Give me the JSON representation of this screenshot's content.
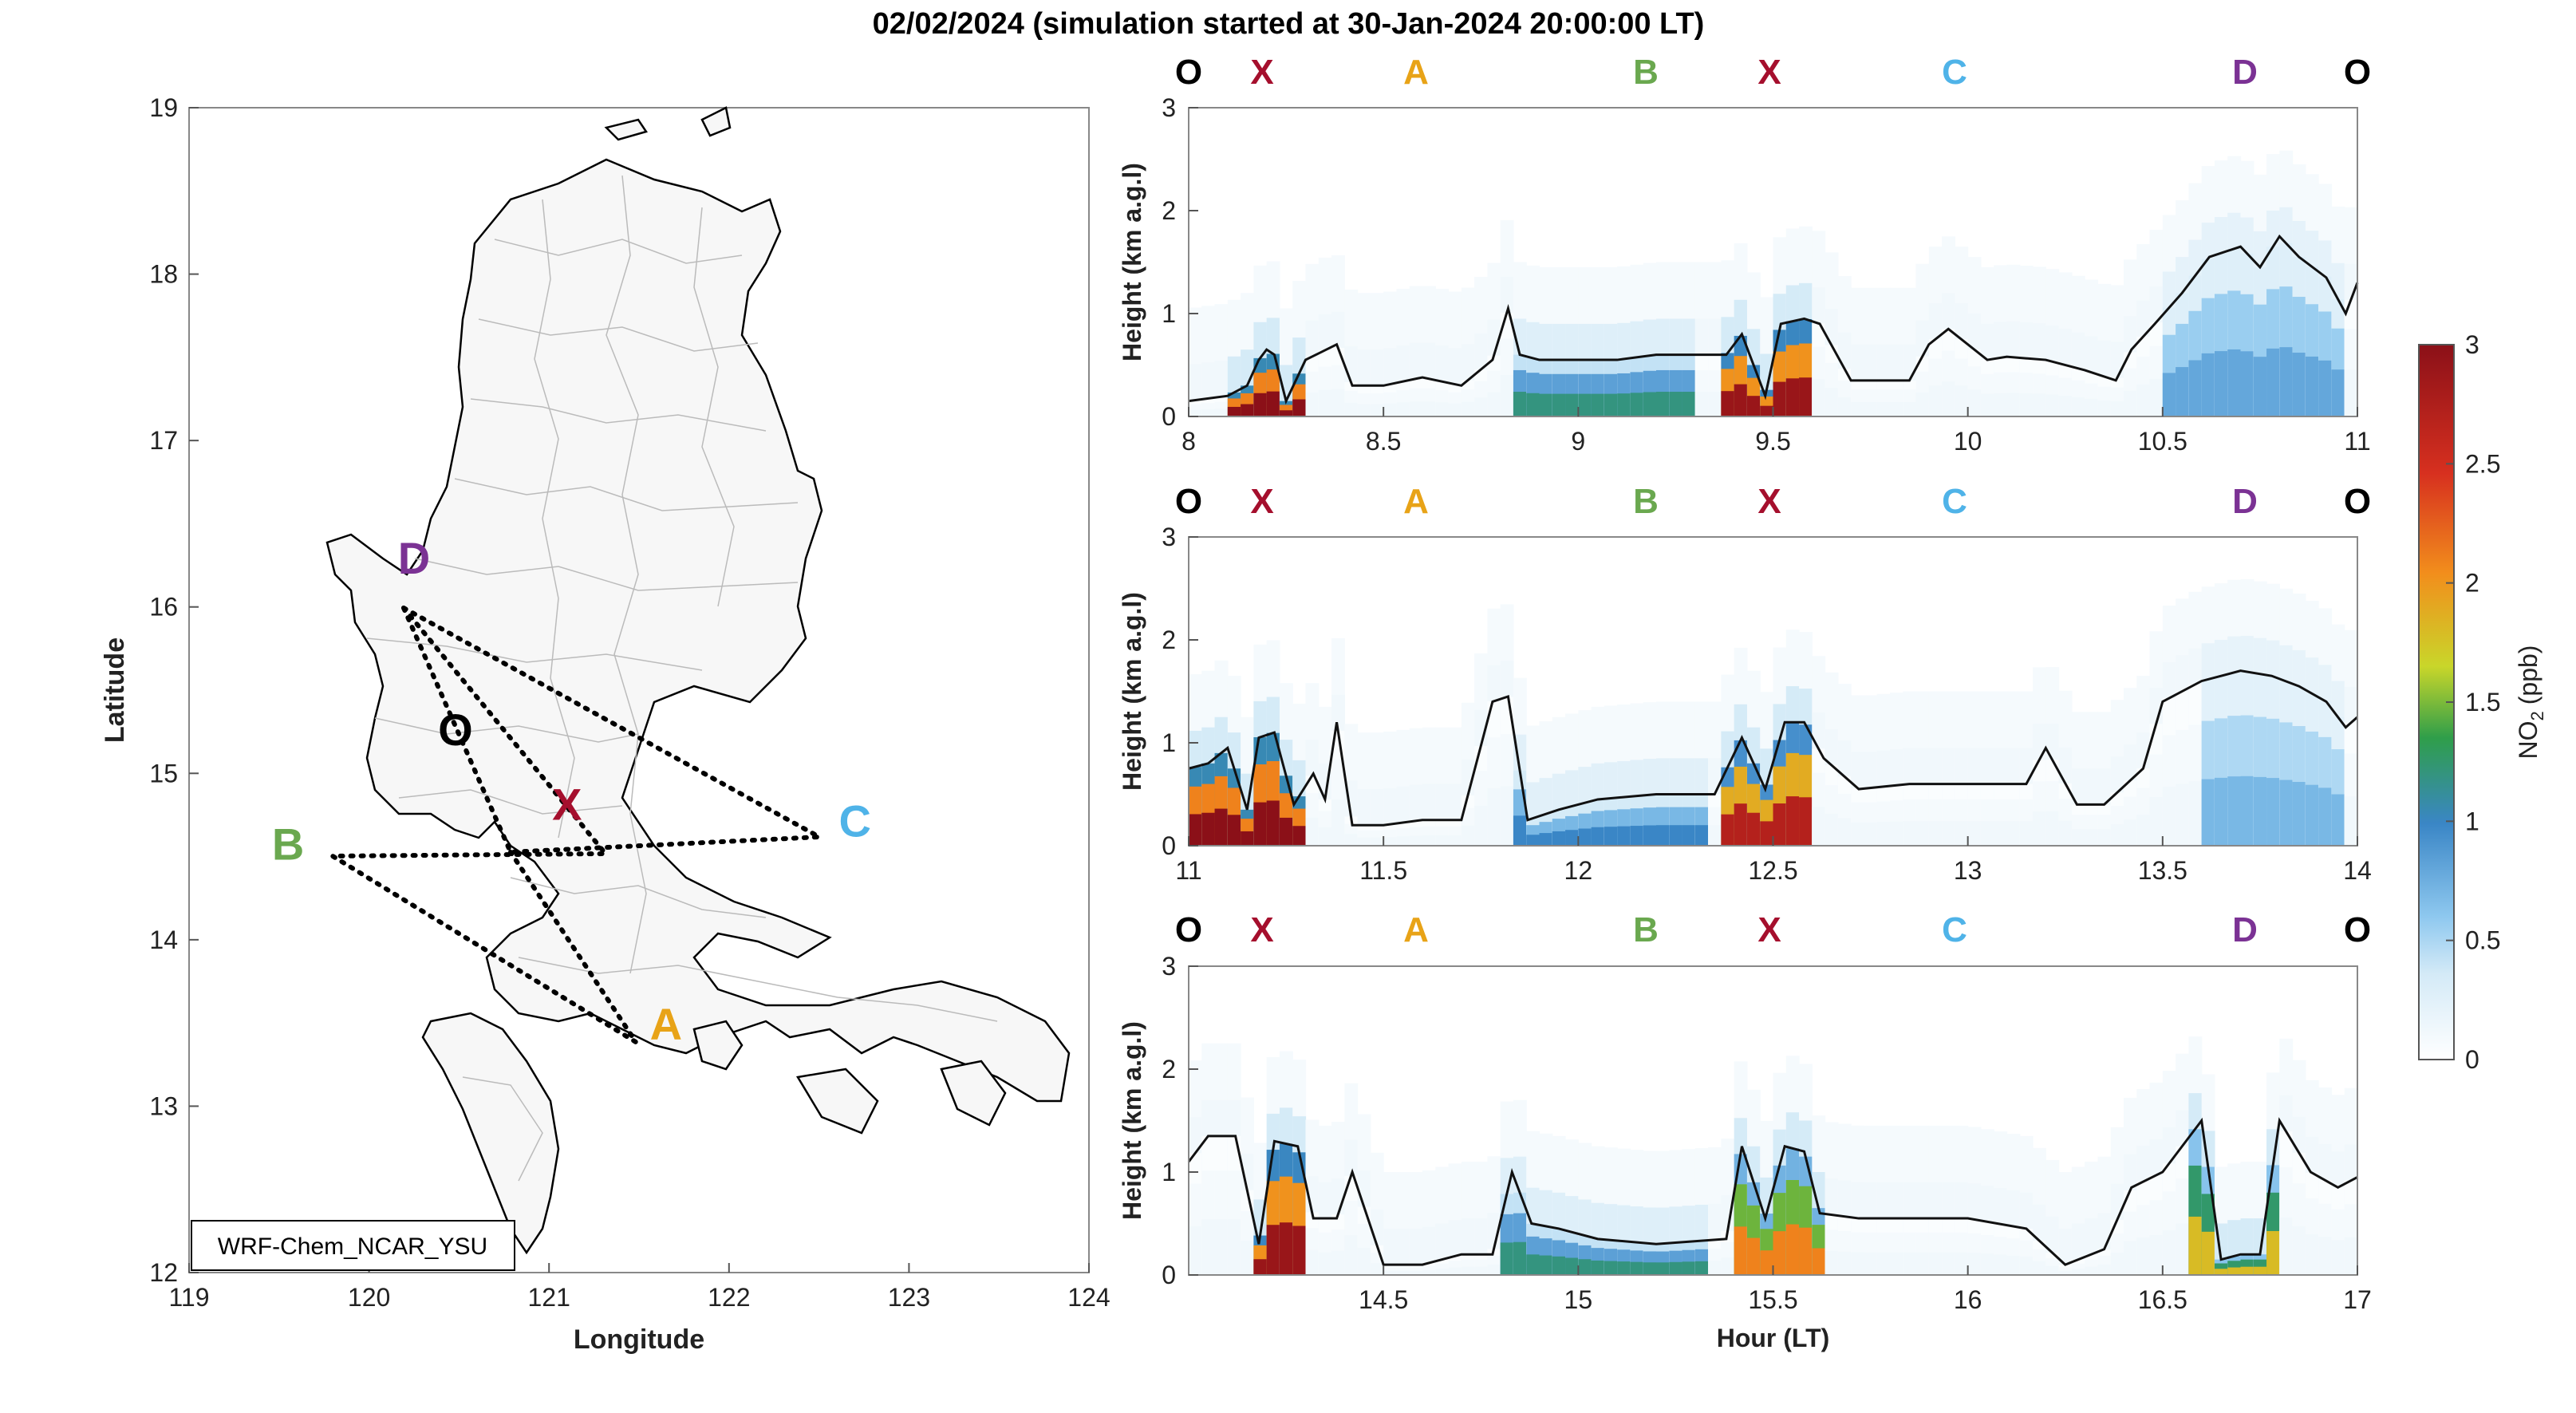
{
  "figure": {
    "title": "02/02/2024 (simulation started at 30-Jan-2024 20:00:00 LT)"
  },
  "map": {
    "xlabel": "Longitude",
    "ylabel": "Latitude",
    "model_label": "WRF-Chem_NCAR_YSU",
    "xticks": [
      119,
      120,
      121,
      122,
      123,
      124
    ],
    "yticks": [
      12,
      13,
      14,
      15,
      16,
      17,
      18,
      19
    ],
    "xlim": [
      119,
      124
    ],
    "ylim": [
      12,
      19
    ],
    "sites": [
      {
        "name": "D",
        "lon": 120.25,
        "lat": 16.2,
        "color": "#7b3294"
      },
      {
        "name": "O",
        "lon": 120.48,
        "lat": 15.17,
        "color": "#000000"
      },
      {
        "name": "X",
        "lon": 121.1,
        "lat": 14.72,
        "color": "#a50f2d"
      },
      {
        "name": "B",
        "lon": 119.55,
        "lat": 14.48,
        "color": "#6aa84f"
      },
      {
        "name": "C",
        "lon": 122.7,
        "lat": 14.62,
        "color": "#4fb3e8"
      },
      {
        "name": "A",
        "lon": 121.65,
        "lat": 13.4,
        "color": "#e8a317"
      }
    ],
    "route_points": {
      "D": [
        120.3,
        16.03
      ],
      "O": [
        120.55,
        15.1
      ],
      "X": [
        121.02,
        14.58
      ],
      "B": [
        119.78,
        14.52
      ],
      "C": [
        122.55,
        14.62
      ],
      "A": [
        121.58,
        13.44
      ]
    }
  },
  "site_label_sequence": [
    {
      "name": "O",
      "color": "#000000"
    },
    {
      "name": "X",
      "color": "#a50f2d"
    },
    {
      "name": "A",
      "color": "#e8a317"
    },
    {
      "name": "B",
      "color": "#6aa84f"
    },
    {
      "name": "X",
      "color": "#a50f2d"
    },
    {
      "name": "C",
      "color": "#4fb3e8"
    },
    {
      "name": "D",
      "color": "#7b3294"
    },
    {
      "name": "O",
      "color": "#000000"
    }
  ],
  "colorbar": {
    "label": "NO",
    "label_sub": "2",
    "label_unit": "(ppb)",
    "ticks": [
      0,
      0.5,
      1,
      1.5,
      2,
      2.5,
      3
    ],
    "range": [
      0,
      3
    ],
    "colors": [
      "#ffffff",
      "#d4eaf7",
      "#8ec8ef",
      "#3a86c6",
      "#2f9e4a",
      "#c9d62a",
      "#f28e1c",
      "#d7301f",
      "#8b1018"
    ]
  },
  "chart_data": [
    {
      "type": "heatmap",
      "title": "",
      "ylabel": "Height (km a.g.l)",
      "xlabel": "",
      "xlim": [
        8,
        11
      ],
      "ylim": [
        0,
        3
      ],
      "xticks": [
        8,
        8.5,
        9,
        9.5,
        10,
        10.5,
        11
      ],
      "yticks": [
        0,
        1,
        2,
        3
      ],
      "pblh": {
        "x": [
          8.0,
          8.1,
          8.15,
          8.18,
          8.2,
          8.22,
          8.25,
          8.3,
          8.38,
          8.42,
          8.5,
          8.6,
          8.7,
          8.78,
          8.82,
          8.85,
          8.9,
          9.0,
          9.1,
          9.2,
          9.3,
          9.38,
          9.42,
          9.48,
          9.52,
          9.58,
          9.62,
          9.7,
          9.85,
          9.9,
          9.95,
          10.05,
          10.1,
          10.2,
          10.3,
          10.38,
          10.42,
          10.48,
          10.55,
          10.62,
          10.7,
          10.75,
          10.8,
          10.85,
          10.92,
          10.97,
          11.0
        ],
        "y": [
          0.15,
          0.2,
          0.3,
          0.55,
          0.65,
          0.6,
          0.15,
          0.55,
          0.7,
          0.3,
          0.3,
          0.38,
          0.3,
          0.55,
          1.05,
          0.6,
          0.55,
          0.55,
          0.55,
          0.6,
          0.6,
          0.6,
          0.8,
          0.2,
          0.9,
          0.95,
          0.9,
          0.35,
          0.35,
          0.7,
          0.85,
          0.55,
          0.58,
          0.55,
          0.45,
          0.35,
          0.65,
          0.9,
          1.2,
          1.55,
          1.65,
          1.45,
          1.75,
          1.55,
          1.35,
          1.0,
          1.3
        ]
      },
      "plumes": [
        {
          "x0": 8.1,
          "x1": 8.3,
          "peak": 3.0
        },
        {
          "x0": 8.82,
          "x1": 9.3,
          "peak": 1.2
        },
        {
          "x0": 9.38,
          "x1": 9.6,
          "peak": 2.9
        },
        {
          "x0": 10.5,
          "x1": 10.97,
          "peak": 0.8
        }
      ]
    },
    {
      "type": "heatmap",
      "title": "",
      "ylabel": "Height (km a.g.l)",
      "xlabel": "",
      "xlim": [
        11,
        14
      ],
      "ylim": [
        0,
        3
      ],
      "xticks": [
        11,
        11.5,
        12,
        12.5,
        13,
        13.5,
        14
      ],
      "yticks": [
        0,
        1,
        2,
        3
      ],
      "pblh": {
        "x": [
          11.0,
          11.05,
          11.1,
          11.15,
          11.18,
          11.22,
          11.27,
          11.32,
          11.35,
          11.38,
          11.42,
          11.5,
          11.6,
          11.7,
          11.78,
          11.82,
          11.87,
          11.95,
          12.05,
          12.2,
          12.35,
          12.42,
          12.48,
          12.53,
          12.58,
          12.63,
          12.72,
          12.85,
          13.0,
          13.15,
          13.2,
          13.28,
          13.35,
          13.45,
          13.5,
          13.6,
          13.7,
          13.78,
          13.85,
          13.92,
          13.97,
          14.0
        ],
        "y": [
          0.75,
          0.8,
          0.95,
          0.35,
          1.05,
          1.1,
          0.4,
          0.7,
          0.45,
          1.2,
          0.2,
          0.2,
          0.25,
          0.25,
          1.4,
          1.45,
          0.25,
          0.35,
          0.45,
          0.5,
          0.5,
          1.05,
          0.55,
          1.2,
          1.2,
          0.85,
          0.55,
          0.6,
          0.6,
          0.6,
          0.95,
          0.4,
          0.4,
          0.75,
          1.4,
          1.6,
          1.7,
          1.65,
          1.55,
          1.4,
          1.15,
          1.25
        ]
      },
      "plumes": [
        {
          "x0": 11.0,
          "x1": 11.3,
          "peak": 3.0
        },
        {
          "x0": 11.85,
          "x1": 12.35,
          "peak": 1.0
        },
        {
          "x0": 12.38,
          "x1": 12.6,
          "peak": 2.7
        },
        {
          "x0": 13.6,
          "x1": 13.95,
          "peak": 0.7
        }
      ]
    },
    {
      "type": "heatmap",
      "title": "",
      "ylabel": "Height (km a.g.l)",
      "xlabel": "Hour (LT)",
      "xlim": [
        14,
        17
      ],
      "ylim": [
        0,
        3
      ],
      "xticks": [
        14.5,
        15,
        15.5,
        16,
        16.5,
        17
      ],
      "yticks": [
        0,
        1,
        2,
        3
      ],
      "pblh": {
        "x": [
          14.0,
          14.05,
          14.12,
          14.18,
          14.22,
          14.28,
          14.32,
          14.38,
          14.42,
          14.5,
          14.6,
          14.7,
          14.78,
          14.83,
          14.88,
          14.95,
          15.05,
          15.2,
          15.38,
          15.42,
          15.48,
          15.53,
          15.58,
          15.62,
          15.72,
          15.85,
          16.0,
          16.15,
          16.25,
          16.35,
          16.42,
          16.5,
          16.6,
          16.65,
          16.7,
          16.75,
          16.8,
          16.88,
          16.95,
          17.0
        ],
        "y": [
          1.1,
          1.35,
          1.35,
          0.3,
          1.3,
          1.25,
          0.55,
          0.55,
          1.0,
          0.1,
          0.1,
          0.2,
          0.2,
          1.0,
          0.5,
          0.45,
          0.35,
          0.3,
          0.35,
          1.25,
          0.55,
          1.25,
          1.2,
          0.6,
          0.55,
          0.55,
          0.55,
          0.45,
          0.1,
          0.25,
          0.85,
          1.0,
          1.5,
          0.15,
          0.2,
          0.2,
          1.5,
          1.0,
          0.85,
          0.95
        ]
      },
      "plumes": [
        {
          "x0": 14.15,
          "x1": 14.3,
          "peak": 2.9
        },
        {
          "x0": 14.8,
          "x1": 15.35,
          "peak": 1.2
        },
        {
          "x0": 15.4,
          "x1": 15.62,
          "peak": 2.1
        },
        {
          "x0": 16.55,
          "x1": 16.8,
          "peak": 1.8
        }
      ]
    }
  ]
}
